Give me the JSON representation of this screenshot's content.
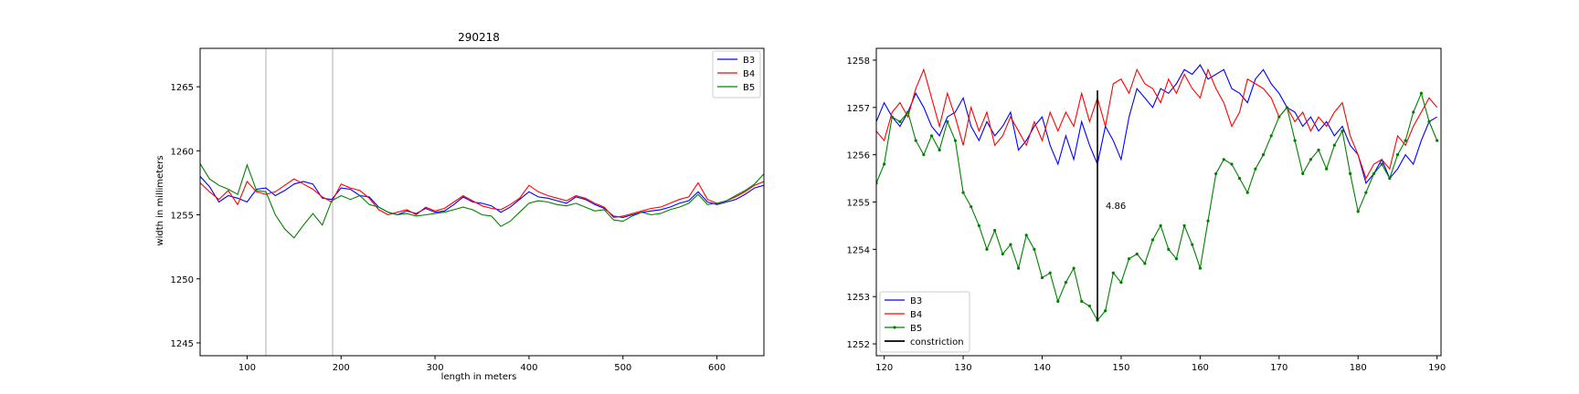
{
  "chart_data": [
    {
      "type": "line",
      "title": "290218",
      "xlabel": "length in meters",
      "ylabel": "width in millimeters",
      "xlim": [
        50,
        650
      ],
      "ylim": [
        1244,
        1268
      ],
      "xticks": [
        100,
        200,
        300,
        400,
        500,
        600
      ],
      "yticks": [
        1245,
        1250,
        1255,
        1260,
        1265
      ],
      "vlines": [
        120,
        191
      ],
      "grid": false,
      "legend_position": "top-right",
      "series": [
        {
          "name": "B3",
          "color": "#0000ff",
          "x": [
            50,
            60,
            70,
            80,
            90,
            100,
            110,
            120,
            130,
            140,
            150,
            160,
            170,
            180,
            190,
            200,
            210,
            220,
            230,
            240,
            250,
            260,
            270,
            280,
            290,
            300,
            310,
            320,
            330,
            340,
            350,
            360,
            370,
            380,
            390,
            400,
            410,
            420,
            430,
            440,
            450,
            460,
            470,
            480,
            490,
            500,
            510,
            520,
            530,
            540,
            550,
            560,
            570,
            580,
            590,
            600,
            610,
            620,
            630,
            640,
            650
          ],
          "values": [
            1258.0,
            1257.2,
            1256.0,
            1256.5,
            1256.3,
            1256.0,
            1257.0,
            1257.1,
            1256.5,
            1256.9,
            1257.4,
            1257.6,
            1257.4,
            1256.3,
            1256.2,
            1257.1,
            1257.0,
            1256.5,
            1256.4,
            1255.6,
            1255.2,
            1255.0,
            1255.3,
            1255.1,
            1255.5,
            1255.2,
            1255.3,
            1255.8,
            1256.4,
            1256.0,
            1255.9,
            1255.7,
            1255.2,
            1255.6,
            1256.2,
            1256.8,
            1256.4,
            1256.3,
            1256.1,
            1255.9,
            1256.4,
            1256.2,
            1255.8,
            1255.5,
            1254.9,
            1254.8,
            1255.0,
            1255.2,
            1255.3,
            1255.4,
            1255.6,
            1255.9,
            1256.1,
            1256.8,
            1256.0,
            1255.8,
            1256.0,
            1256.2,
            1256.6,
            1257.1,
            1257.3
          ]
        },
        {
          "name": "B4",
          "color": "#ff0000",
          "x": [
            50,
            60,
            70,
            80,
            90,
            100,
            110,
            120,
            130,
            140,
            150,
            160,
            170,
            180,
            190,
            200,
            210,
            220,
            230,
            240,
            250,
            260,
            270,
            280,
            290,
            300,
            310,
            320,
            330,
            340,
            350,
            360,
            370,
            380,
            390,
            400,
            410,
            420,
            430,
            440,
            450,
            460,
            470,
            480,
            490,
            500,
            510,
            520,
            530,
            540,
            550,
            560,
            570,
            580,
            590,
            600,
            610,
            620,
            630,
            640,
            650
          ],
          "values": [
            1257.5,
            1256.8,
            1256.2,
            1256.9,
            1255.8,
            1257.6,
            1256.8,
            1256.6,
            1256.8,
            1257.3,
            1257.8,
            1257.4,
            1257.0,
            1256.4,
            1256.0,
            1257.4,
            1257.1,
            1256.9,
            1256.3,
            1255.4,
            1255.0,
            1255.2,
            1255.4,
            1255.0,
            1255.6,
            1255.3,
            1255.5,
            1256.0,
            1256.5,
            1256.1,
            1255.7,
            1255.5,
            1255.4,
            1255.8,
            1256.3,
            1257.3,
            1256.8,
            1256.5,
            1256.3,
            1256.1,
            1256.5,
            1256.3,
            1255.9,
            1255.6,
            1254.8,
            1254.9,
            1255.1,
            1255.3,
            1255.5,
            1255.6,
            1255.9,
            1256.2,
            1256.4,
            1257.5,
            1256.2,
            1255.9,
            1256.1,
            1256.4,
            1256.8,
            1257.3,
            1257.6
          ]
        },
        {
          "name": "B5",
          "color": "#008000",
          "x": [
            50,
            60,
            70,
            80,
            90,
            100,
            110,
            120,
            130,
            140,
            150,
            160,
            170,
            180,
            190,
            200,
            210,
            220,
            230,
            240,
            250,
            260,
            270,
            280,
            290,
            300,
            310,
            320,
            330,
            340,
            350,
            360,
            370,
            380,
            390,
            400,
            410,
            420,
            430,
            440,
            450,
            460,
            470,
            480,
            490,
            500,
            510,
            520,
            530,
            540,
            550,
            560,
            570,
            580,
            590,
            600,
            610,
            620,
            630,
            640,
            650
          ],
          "values": [
            1259.0,
            1257.8,
            1257.3,
            1257.0,
            1256.6,
            1258.9,
            1256.9,
            1256.8,
            1255.0,
            1253.9,
            1253.2,
            1254.2,
            1255.1,
            1254.2,
            1256.1,
            1256.5,
            1256.2,
            1256.5,
            1255.8,
            1255.6,
            1255.2,
            1255.0,
            1255.1,
            1254.9,
            1255.0,
            1255.1,
            1255.2,
            1255.4,
            1255.6,
            1255.4,
            1255.0,
            1254.9,
            1254.1,
            1254.5,
            1255.2,
            1255.9,
            1256.1,
            1256.0,
            1255.8,
            1255.7,
            1255.9,
            1255.6,
            1255.3,
            1255.4,
            1254.6,
            1254.5,
            1254.9,
            1255.2,
            1255.0,
            1255.1,
            1255.4,
            1255.6,
            1255.9,
            1256.6,
            1255.8,
            1255.9,
            1256.1,
            1256.5,
            1256.9,
            1257.4,
            1258.2
          ]
        }
      ]
    },
    {
      "type": "line",
      "title": "",
      "xlabel": "",
      "ylabel": "",
      "xlim": [
        119,
        190.5
      ],
      "ylim": [
        1251.75,
        1258.25
      ],
      "xticks": [
        120,
        130,
        140,
        150,
        160,
        170,
        180,
        190
      ],
      "yticks": [
        1252,
        1253,
        1254,
        1255,
        1256,
        1257,
        1258
      ],
      "grid": false,
      "legend_position": "bottom-left",
      "annotation": {
        "text": "4.86",
        "x": 147,
        "y_low": 1252.5,
        "y_high": 1257.36
      },
      "series": [
        {
          "name": "B3",
          "color": "#0000ff",
          "x": [
            119,
            120,
            121,
            122,
            123,
            124,
            125,
            126,
            127,
            128,
            129,
            130,
            131,
            132,
            133,
            134,
            135,
            136,
            137,
            138,
            139,
            140,
            141,
            142,
            143,
            144,
            145,
            146,
            147,
            148,
            149,
            150,
            151,
            152,
            153,
            154,
            155,
            156,
            157,
            158,
            159,
            160,
            161,
            162,
            163,
            164,
            165,
            166,
            167,
            168,
            169,
            170,
            171,
            172,
            173,
            174,
            175,
            176,
            177,
            178,
            179,
            180,
            181,
            182,
            183,
            184,
            185,
            186,
            187,
            188,
            189,
            190
          ],
          "values": [
            1256.7,
            1257.1,
            1256.8,
            1256.6,
            1256.9,
            1257.3,
            1257.0,
            1256.6,
            1256.4,
            1256.8,
            1256.9,
            1257.2,
            1256.6,
            1256.3,
            1256.7,
            1256.4,
            1256.6,
            1256.9,
            1256.1,
            1256.3,
            1256.6,
            1256.8,
            1256.2,
            1255.8,
            1256.4,
            1255.9,
            1256.7,
            1256.2,
            1255.8,
            1256.6,
            1256.3,
            1255.9,
            1256.8,
            1257.4,
            1257.2,
            1257.0,
            1257.4,
            1257.3,
            1257.5,
            1257.8,
            1257.7,
            1257.9,
            1257.6,
            1257.7,
            1257.8,
            1257.4,
            1257.3,
            1257.1,
            1257.6,
            1257.8,
            1257.5,
            1257.3,
            1257.0,
            1256.9,
            1256.6,
            1256.8,
            1256.5,
            1256.7,
            1256.4,
            1256.6,
            1256.2,
            1256.0,
            1255.4,
            1255.6,
            1255.9,
            1255.5,
            1255.7,
            1256.0,
            1255.8,
            1256.3,
            1256.7,
            1256.8
          ]
        },
        {
          "name": "B4",
          "color": "#ff0000",
          "x": [
            119,
            120,
            121,
            122,
            123,
            124,
            125,
            126,
            127,
            128,
            129,
            130,
            131,
            132,
            133,
            134,
            135,
            136,
            137,
            138,
            139,
            140,
            141,
            142,
            143,
            144,
            145,
            146,
            147,
            148,
            149,
            150,
            151,
            152,
            153,
            154,
            155,
            156,
            157,
            158,
            159,
            160,
            161,
            162,
            163,
            164,
            165,
            166,
            167,
            168,
            169,
            170,
            171,
            172,
            173,
            174,
            175,
            176,
            177,
            178,
            179,
            180,
            181,
            182,
            183,
            184,
            185,
            186,
            187,
            188,
            189,
            190
          ],
          "values": [
            1256.5,
            1256.3,
            1256.9,
            1257.1,
            1256.8,
            1257.4,
            1257.8,
            1257.2,
            1256.6,
            1257.3,
            1256.8,
            1256.2,
            1257.0,
            1256.5,
            1256.9,
            1256.2,
            1256.4,
            1256.8,
            1256.5,
            1256.2,
            1256.7,
            1256.3,
            1256.9,
            1256.5,
            1256.9,
            1256.6,
            1257.3,
            1256.7,
            1257.2,
            1256.6,
            1257.5,
            1257.6,
            1257.3,
            1257.8,
            1257.5,
            1257.4,
            1257.1,
            1257.6,
            1257.3,
            1257.7,
            1257.4,
            1257.2,
            1257.8,
            1257.4,
            1257.1,
            1256.6,
            1256.9,
            1257.6,
            1257.5,
            1257.4,
            1257.2,
            1256.8,
            1257.0,
            1256.7,
            1256.9,
            1256.5,
            1256.8,
            1256.6,
            1256.9,
            1257.1,
            1256.4,
            1256.0,
            1255.5,
            1255.8,
            1255.9,
            1255.7,
            1256.4,
            1256.2,
            1256.6,
            1256.9,
            1257.2,
            1257.0
          ]
        },
        {
          "name": "B5",
          "color": "#008000",
          "x": [
            119,
            120,
            121,
            122,
            123,
            124,
            125,
            126,
            127,
            128,
            129,
            130,
            131,
            132,
            133,
            134,
            135,
            136,
            137,
            138,
            139,
            140,
            141,
            142,
            143,
            144,
            145,
            146,
            147,
            148,
            149,
            150,
            151,
            152,
            153,
            154,
            155,
            156,
            157,
            158,
            159,
            160,
            161,
            162,
            163,
            164,
            165,
            166,
            167,
            168,
            169,
            170,
            171,
            172,
            173,
            174,
            175,
            176,
            177,
            178,
            179,
            180,
            181,
            182,
            183,
            184,
            185,
            186,
            187,
            188,
            189,
            190
          ],
          "values": [
            1255.4,
            1255.8,
            1256.8,
            1256.7,
            1256.9,
            1256.3,
            1256.0,
            1256.4,
            1256.1,
            1256.7,
            1256.3,
            1255.2,
            1254.9,
            1254.5,
            1254.0,
            1254.4,
            1253.9,
            1254.1,
            1253.6,
            1254.3,
            1254.0,
            1253.4,
            1253.5,
            1252.9,
            1253.3,
            1253.6,
            1252.9,
            1252.8,
            1252.5,
            1252.7,
            1253.5,
            1253.3,
            1253.8,
            1253.9,
            1253.7,
            1254.2,
            1254.5,
            1254.0,
            1253.8,
            1254.5,
            1254.1,
            1253.6,
            1254.6,
            1255.6,
            1255.9,
            1255.8,
            1255.5,
            1255.2,
            1255.7,
            1256.0,
            1256.4,
            1256.8,
            1257.0,
            1256.3,
            1255.6,
            1255.9,
            1256.1,
            1255.7,
            1256.2,
            1256.5,
            1255.6,
            1254.8,
            1255.2,
            1255.6,
            1255.8,
            1255.5,
            1256.0,
            1256.3,
            1256.9,
            1257.3,
            1256.7,
            1256.3
          ]
        },
        {
          "name": "constriction",
          "color": "#000000",
          "x": [
            147,
            147
          ],
          "values": [
            1252.5,
            1257.36
          ]
        }
      ]
    }
  ]
}
